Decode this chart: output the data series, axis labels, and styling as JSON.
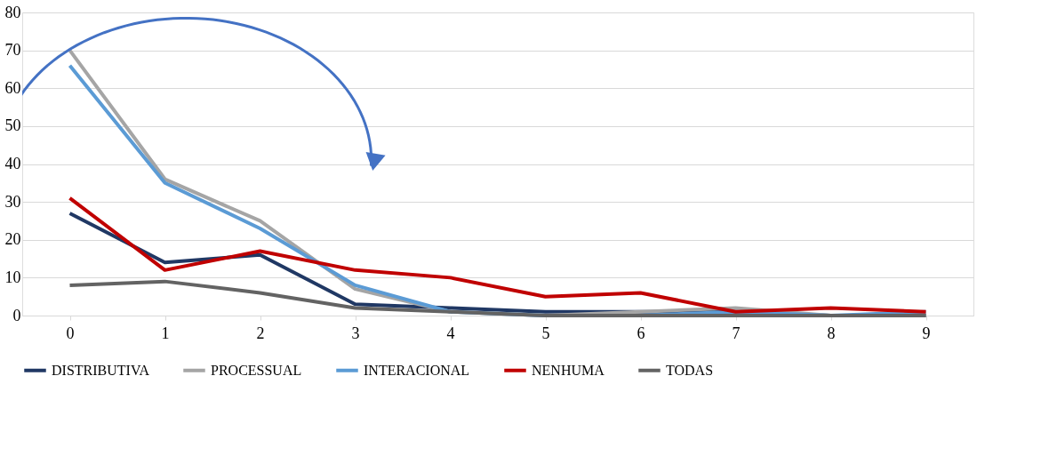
{
  "chart_data": {
    "type": "line",
    "categories": [
      "0",
      "1",
      "2",
      "3",
      "4",
      "5",
      "6",
      "7",
      "8",
      "9"
    ],
    "series": [
      {
        "name": "DISTRIBUTIVA",
        "color": "#203864",
        "values": [
          27,
          14,
          16,
          3,
          2,
          1,
          1,
          1,
          0,
          0
        ]
      },
      {
        "name": "PROCESSUAL",
        "color": "#a5a5a5",
        "values": [
          70,
          36,
          25,
          7,
          1,
          0,
          1,
          2,
          0,
          0
        ]
      },
      {
        "name": "INTERACIONAL",
        "color": "#5b9bd5",
        "values": [
          66,
          35,
          23,
          8,
          1,
          0,
          0,
          1,
          0,
          1
        ]
      },
      {
        "name": "NENHUMA",
        "color": "#c00000",
        "values": [
          31,
          12,
          17,
          12,
          10,
          5,
          6,
          1,
          2,
          1
        ]
      },
      {
        "name": "TODAS",
        "color": "#636363",
        "values": [
          8,
          9,
          6,
          2,
          1,
          0,
          0,
          0,
          0,
          0
        ]
      }
    ],
    "ylim": [
      0,
      80
    ],
    "yticks": [
      0,
      10,
      20,
      30,
      40,
      50,
      60,
      70,
      80
    ],
    "grid": "y",
    "legend": "bottom",
    "marker": "none",
    "line_style": "solid"
  }
}
